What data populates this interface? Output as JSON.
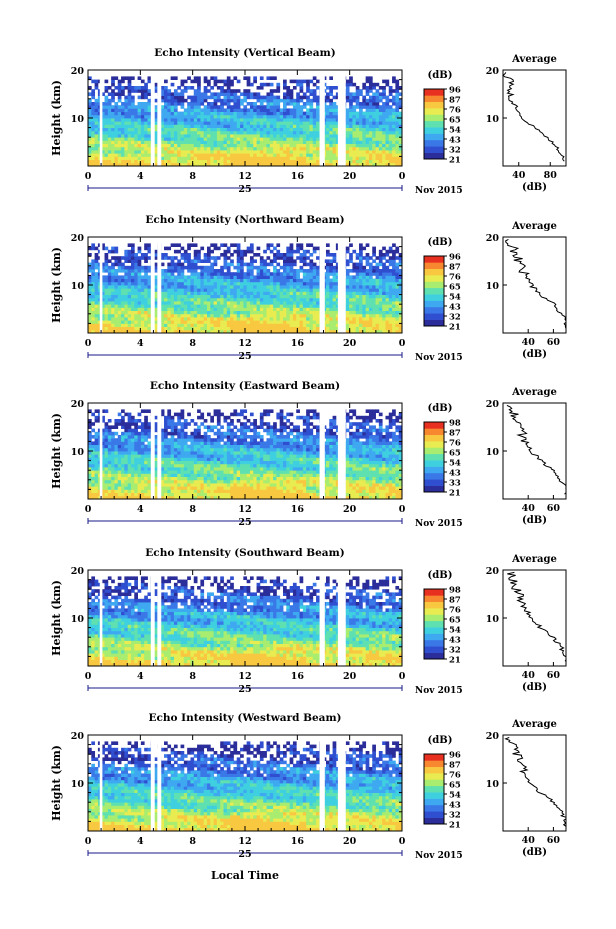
{
  "colors": {
    "colormap": [
      "#2a2d9a",
      "#2f4fd0",
      "#3a78e8",
      "#3ea8f0",
      "#3fd0e0",
      "#5ee0b0",
      "#a8ec70",
      "#e8ec50",
      "#f8c840",
      "#f88830",
      "#e83020"
    ],
    "gap": "#ffffff",
    "axis": "#000000",
    "time_axis_accent": "#1a1a8a"
  },
  "chart_data": [
    {
      "type": "heatmap",
      "title": "Echo Intensity (Vertical Beam)",
      "ylabel": "Height (km)",
      "ylim": [
        0,
        20
      ],
      "yticks": [
        "10",
        "20"
      ],
      "xticks": [
        "0",
        "4",
        "8",
        "12",
        "16",
        "20",
        "0"
      ],
      "xlim_hours": [
        0,
        24
      ],
      "day_label": "25",
      "date_label": "Nov 2015",
      "colorbar": {
        "unit": "(dB)",
        "labels": [
          "96",
          "87",
          "76",
          "65",
          "54",
          "43",
          "32",
          "21"
        ]
      },
      "data_gaps_hours": [
        [
          0.9,
          1.1
        ],
        [
          4.8,
          5.1
        ],
        [
          5.3,
          5.6
        ],
        [
          17.7,
          18.1
        ],
        [
          19.1,
          19.7
        ]
      ],
      "profile": {
        "title": "Average",
        "xlabel": "(dB)",
        "xticks": [
          "40",
          "80"
        ],
        "ylim": [
          0,
          20
        ],
        "height_km": [
          2,
          4,
          6,
          8,
          10,
          12,
          14,
          16,
          18,
          19
        ],
        "value_db": [
          96,
          88,
          76,
          60,
          44,
          37,
          30,
          28,
          30,
          22
        ]
      }
    },
    {
      "type": "heatmap",
      "title": "Echo Intensity (Northward Beam)",
      "ylabel": "Height (km)",
      "ylim": [
        0,
        20
      ],
      "yticks": [
        "10",
        "20"
      ],
      "xticks": [
        "0",
        "4",
        "8",
        "12",
        "16",
        "20",
        "0"
      ],
      "xlim_hours": [
        0,
        24
      ],
      "day_label": "25",
      "date_label": "Nov 2015",
      "colorbar": {
        "unit": "(dB)",
        "labels": [
          "96",
          "87",
          "76",
          "65",
          "54",
          "43",
          "32",
          "21"
        ]
      },
      "data_gaps_hours": [
        [
          0.9,
          1.1
        ],
        [
          4.8,
          5.1
        ],
        [
          5.3,
          5.6
        ],
        [
          17.7,
          18.1
        ],
        [
          19.1,
          19.7
        ]
      ],
      "profile": {
        "title": "Average",
        "xlabel": "(dB)",
        "xticks": [
          "40",
          "60"
        ],
        "ylim": [
          0,
          20
        ],
        "height_km": [
          2,
          4,
          6,
          8,
          10,
          12,
          14,
          16,
          18,
          19
        ],
        "value_db": [
          70,
          66,
          60,
          50,
          42,
          38,
          34,
          31,
          28,
          26
        ]
      }
    },
    {
      "type": "heatmap",
      "title": "Echo Intensity (Eastward Beam)",
      "ylabel": "Height (km)",
      "ylim": [
        0,
        20
      ],
      "yticks": [
        "10",
        "20"
      ],
      "xticks": [
        "0",
        "4",
        "8",
        "12",
        "16",
        "20",
        "0"
      ],
      "xlim_hours": [
        0,
        24
      ],
      "day_label": "25",
      "date_label": "Nov 2015",
      "colorbar": {
        "unit": "(dB)",
        "labels": [
          "98",
          "87",
          "76",
          "65",
          "54",
          "43",
          "33",
          "21"
        ]
      },
      "data_gaps_hours": [
        [
          0.9,
          1.1
        ],
        [
          4.8,
          5.1
        ],
        [
          5.3,
          5.6
        ],
        [
          17.7,
          18.1
        ],
        [
          19.1,
          19.7
        ]
      ],
      "profile": {
        "title": "Average",
        "xlabel": "(dB)",
        "xticks": [
          "40",
          "60"
        ],
        "ylim": [
          0,
          20
        ],
        "height_km": [
          2,
          4,
          6,
          8,
          10,
          12,
          14,
          16,
          18,
          19
        ],
        "value_db": [
          70,
          66,
          60,
          50,
          42,
          38,
          34,
          31,
          28,
          26
        ]
      }
    },
    {
      "type": "heatmap",
      "title": "Echo Intensity (Southward Beam)",
      "ylabel": "Height (km)",
      "ylim": [
        0,
        20
      ],
      "yticks": [
        "10",
        "20"
      ],
      "xticks": [
        "0",
        "4",
        "8",
        "12",
        "16",
        "20",
        "0"
      ],
      "xlim_hours": [
        0,
        24
      ],
      "day_label": "25",
      "date_label": "Nov 2015",
      "colorbar": {
        "unit": "(dB)",
        "labels": [
          "98",
          "87",
          "76",
          "65",
          "54",
          "43",
          "32",
          "21"
        ]
      },
      "data_gaps_hours": [
        [
          0.9,
          1.1
        ],
        [
          4.8,
          5.1
        ],
        [
          5.3,
          5.6
        ],
        [
          17.7,
          18.1
        ],
        [
          19.1,
          19.7
        ]
      ],
      "profile": {
        "title": "Average",
        "xlabel": "(dB)",
        "xticks": [
          "40",
          "60"
        ],
        "ylim": [
          0,
          20
        ],
        "height_km": [
          2,
          4,
          6,
          8,
          10,
          12,
          14,
          16,
          18,
          19
        ],
        "value_db": [
          70,
          66,
          60,
          50,
          42,
          38,
          34,
          31,
          28,
          26
        ]
      }
    },
    {
      "type": "heatmap",
      "title": "Echo Intensity (Westward Beam)",
      "ylabel": "Height (km)",
      "ylim": [
        0,
        20
      ],
      "yticks": [
        "10",
        "20"
      ],
      "xticks": [
        "0",
        "4",
        "8",
        "12",
        "16",
        "20",
        "0"
      ],
      "xlim_hours": [
        0,
        24
      ],
      "day_label": "25",
      "date_label": "Nov 2015",
      "colorbar": {
        "unit": "(dB)",
        "labels": [
          "96",
          "87",
          "76",
          "65",
          "54",
          "43",
          "32",
          "21"
        ]
      },
      "data_gaps_hours": [
        [
          0.9,
          1.1
        ],
        [
          4.8,
          5.1
        ],
        [
          5.3,
          5.6
        ],
        [
          17.7,
          18.1
        ],
        [
          19.1,
          19.7
        ]
      ],
      "profile": {
        "title": "Average",
        "xlabel": "(dB)",
        "xticks": [
          "40",
          "60"
        ],
        "ylim": [
          0,
          20
        ],
        "height_km": [
          2,
          4,
          6,
          8,
          10,
          12,
          14,
          16,
          18,
          19
        ],
        "value_db": [
          70,
          66,
          60,
          50,
          42,
          38,
          34,
          31,
          28,
          26
        ]
      }
    }
  ],
  "shared_xlabel": "Local Time"
}
